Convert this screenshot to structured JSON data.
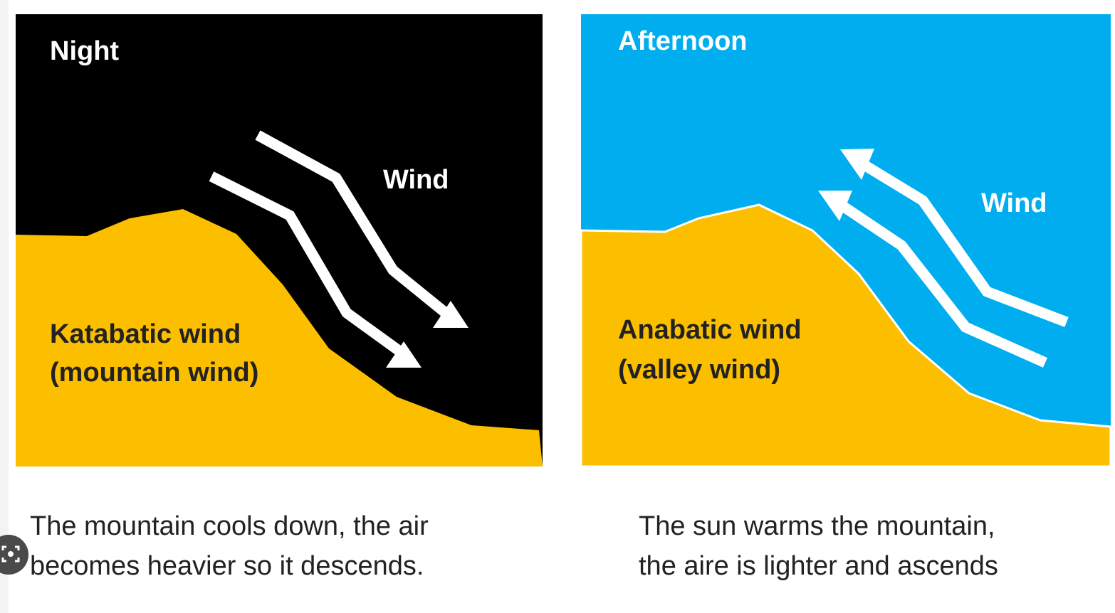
{
  "panels": {
    "night": {
      "title": "Night",
      "wind_label": "Wind",
      "wind_name_line1": "Katabatic wind",
      "wind_name_line2": "(mountain wind)",
      "caption_line1": "The mountain cools down, the air",
      "caption_line2": "becomes heavier so it descends.",
      "wind_direction": "downslope"
    },
    "afternoon": {
      "title": "Afternoon",
      "wind_label": "Wind",
      "wind_name_line1": "Anabatic wind",
      "wind_name_line2": "(valley wind)",
      "caption_line1": "The sun warms the mountain,",
      "caption_line2": "the aire is lighter and ascends",
      "wind_direction": "upslope"
    }
  },
  "colors": {
    "night_sky": "#000000",
    "afternoon_sky": "#00aeef",
    "mountain": "#fcbf00",
    "arrow": "#ffffff",
    "text_dark": "#222222"
  },
  "overlay": {
    "icon": "image-search-icon"
  }
}
